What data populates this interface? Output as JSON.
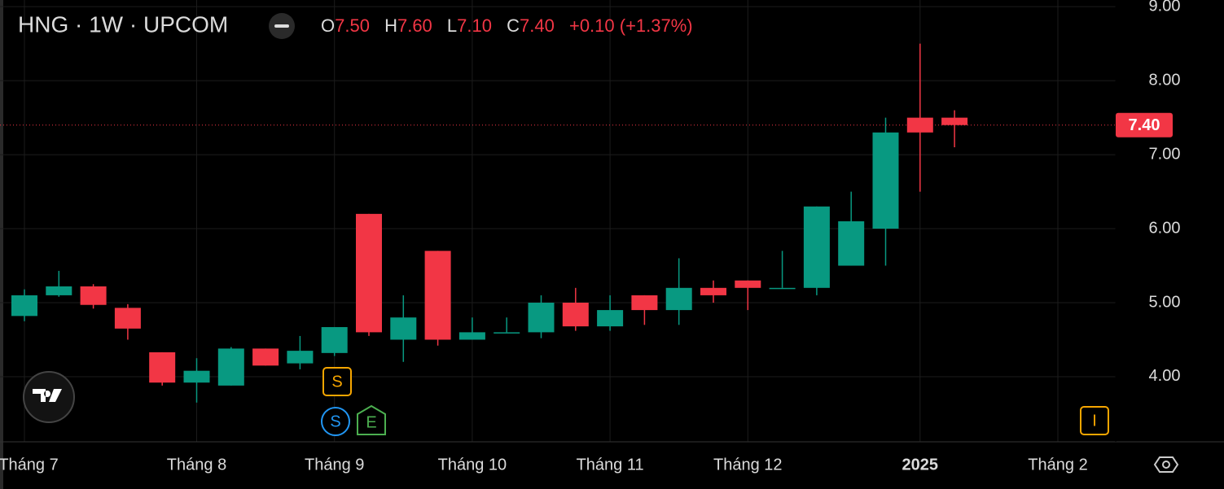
{
  "chart_data": {
    "type": "candlestick",
    "header": {
      "symbol": "HNG · 1W · UPCOM",
      "o_label": "O",
      "open": "7.50",
      "h_label": "H",
      "high": "7.60",
      "l_label": "L",
      "low": "7.10",
      "c_label": "C",
      "close": "7.40",
      "change": "+0.10 (+1.37%)"
    },
    "categories": [
      "Tháng 7",
      null,
      null,
      null,
      null,
      "Tháng 8",
      null,
      null,
      null,
      "Tháng 9",
      null,
      null,
      null,
      "Tháng 10",
      null,
      null,
      null,
      "Tháng 11",
      null,
      null,
      null,
      "Tháng 12",
      null,
      null,
      null,
      null,
      "2025",
      null
    ],
    "future_label": "Tháng 2",
    "open": [
      4.82,
      5.1,
      5.22,
      4.93,
      4.33,
      3.92,
      3.88,
      4.38,
      4.18,
      4.32,
      6.2,
      4.5,
      5.7,
      4.5,
      4.6,
      4.6,
      5.0,
      4.68,
      5.1,
      4.9,
      5.2,
      5.3,
      5.2,
      5.2,
      5.5,
      6.0,
      7.5,
      7.5
    ],
    "high": [
      5.18,
      5.43,
      5.25,
      4.98,
      4.33,
      4.25,
      4.4,
      4.38,
      4.55,
      4.67,
      6.2,
      5.1,
      5.7,
      4.8,
      4.8,
      5.1,
      5.2,
      5.1,
      5.1,
      5.6,
      5.3,
      5.3,
      5.7,
      6.3,
      6.5,
      7.5,
      8.5,
      7.6
    ],
    "low": [
      4.75,
      5.08,
      4.92,
      4.5,
      3.88,
      3.65,
      3.88,
      4.15,
      4.1,
      4.28,
      4.55,
      4.2,
      4.42,
      4.5,
      4.6,
      4.52,
      4.62,
      4.62,
      4.7,
      4.7,
      5.0,
      4.9,
      5.2,
      5.1,
      5.5,
      5.5,
      6.5,
      7.1
    ],
    "close": [
      5.1,
      5.22,
      4.97,
      4.65,
      3.92,
      4.08,
      4.38,
      4.15,
      4.35,
      4.67,
      4.6,
      4.8,
      4.5,
      4.6,
      4.6,
      5.0,
      4.68,
      4.9,
      4.9,
      5.2,
      5.1,
      5.2,
      5.2,
      6.3,
      6.1,
      7.3,
      7.3,
      7.4
    ],
    "up_color": "#089981",
    "down_color": "#f23645",
    "ylim": [
      3.12,
      9.09
    ],
    "yticks": [
      {
        "value": 4,
        "label": "4.00"
      },
      {
        "value": 5,
        "label": "5.00"
      },
      {
        "value": 6,
        "label": "6.00"
      },
      {
        "value": 7,
        "label": "7.00"
      },
      {
        "value": 8,
        "label": "8.00"
      },
      {
        "value": 9,
        "label": "9.00"
      }
    ],
    "last_price": {
      "value": 7.4,
      "label": "7.40"
    },
    "events": {
      "split": "S",
      "split2": "S",
      "earnings": "E",
      "info": "I"
    },
    "grid": true
  }
}
